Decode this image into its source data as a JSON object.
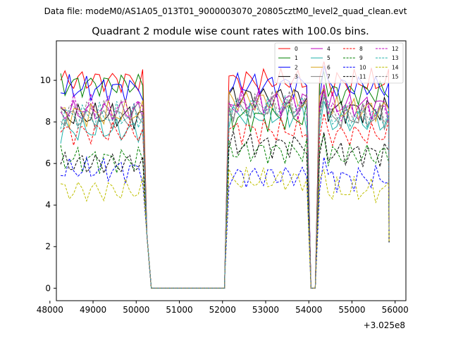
{
  "header": {
    "datafile": "Data file: modeM0/AS1A05_013T01_9000003070_20805cztM0_level2_quad_clean.evt",
    "title": "Quadrant 2 module wise count rates with 100.0s bins."
  },
  "chart_data": {
    "type": "line",
    "title": "Quadrant 2 module wise count rates with 100.0s bins.",
    "xlabel": "",
    "ylabel": "",
    "x_offset_label": "+3.025e8",
    "xlim": [
      48150,
      56250
    ],
    "ylim": [
      -0.6,
      11.9
    ],
    "xticks": [
      48000,
      49000,
      50000,
      51000,
      52000,
      53000,
      54000,
      55000,
      56000
    ],
    "xtick_labels": [
      "48000",
      "49000",
      "50000",
      "51000",
      "52000",
      "53000",
      "54000",
      "55000",
      "56000"
    ],
    "yticks": [
      0,
      2,
      4,
      6,
      8,
      10
    ],
    "ytick_labels": [
      "0",
      "2",
      "4",
      "6",
      "8",
      "10"
    ],
    "grid": false,
    "legend_position": "top-right",
    "segments": [
      {
        "start": 48250,
        "end": 50150,
        "points": 20
      },
      {
        "start": 52150,
        "end": 53950,
        "points": 19
      },
      {
        "start": 54250,
        "end": 55850,
        "points": 17
      }
    ],
    "zero_interval": [
      50350,
      52050
    ],
    "gap_points": [
      [
        50250,
        2.5
      ],
      [
        52050,
        0.4
      ],
      [
        54050,
        0.5
      ],
      [
        54150,
        0
      ]
    ],
    "series": [
      {
        "name": "0",
        "color": "#ff0000",
        "dash": "solid",
        "levels": [
          10.0,
          10.0,
          9.9
        ]
      },
      {
        "name": "1",
        "color": "#008000",
        "dash": "solid",
        "levels": [
          9.8,
          8.2,
          9.4
        ]
      },
      {
        "name": "2",
        "color": "#0000ff",
        "dash": "solid",
        "levels": [
          9.6,
          9.8,
          9.7
        ]
      },
      {
        "name": "3",
        "color": "#000000",
        "dash": "solid",
        "levels": [
          8.3,
          9.2,
          8.6
        ]
      },
      {
        "name": "4",
        "color": "#bf00bf",
        "dash": "solid",
        "levels": [
          8.5,
          9.0,
          8.8
        ]
      },
      {
        "name": "5",
        "color": "#20b2aa",
        "dash": "solid",
        "levels": [
          7.6,
          8.3,
          8.0
        ]
      },
      {
        "name": "6",
        "color": "#daa520",
        "dash": "solid",
        "levels": [
          8.4,
          9.0,
          8.6
        ]
      },
      {
        "name": "7",
        "color": "#808080",
        "dash": "solid",
        "levels": [
          8.2,
          8.6,
          8.2
        ]
      },
      {
        "name": "8",
        "color": "#ff0000",
        "dash": "dashed",
        "levels": [
          7.5,
          7.6,
          7.4
        ]
      },
      {
        "name": "9",
        "color": "#008000",
        "dash": "dashed",
        "levels": [
          6.2,
          6.6,
          6.4
        ]
      },
      {
        "name": "10",
        "color": "#0000ff",
        "dash": "dashed",
        "levels": [
          5.7,
          5.4,
          5.3
        ]
      },
      {
        "name": "11",
        "color": "#000000",
        "dash": "dashed",
        "levels": [
          6.0,
          6.9,
          6.5
        ]
      },
      {
        "name": "12",
        "color": "#bf00bf",
        "dash": "dashed",
        "levels": [
          8.7,
          8.8,
          8.5
        ]
      },
      {
        "name": "13",
        "color": "#20b2aa",
        "dash": "dashed",
        "levels": [
          8.3,
          8.7,
          8.3
        ]
      },
      {
        "name": "14",
        "color": "#bfbf00",
        "dash": "dashed",
        "levels": [
          4.7,
          5.2,
          4.7
        ]
      },
      {
        "name": "15",
        "color": "#808080",
        "dash": "dashed",
        "levels": [
          8.5,
          8.8,
          8.3
        ]
      }
    ]
  }
}
